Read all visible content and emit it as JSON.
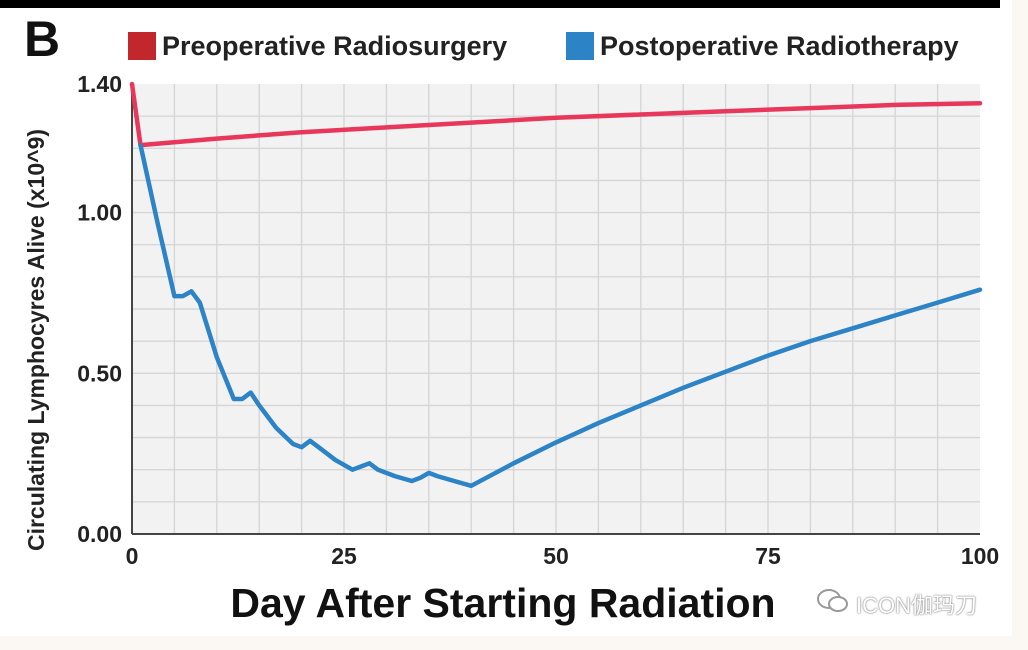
{
  "panel_label": "B",
  "watermark": {
    "text": "ICON伽玛刀",
    "icon": "wechat-icon"
  },
  "colors": {
    "preoperative": "#e8375a",
    "postoperative": "#2c83c6",
    "legend_pre_swatch": "#c1272d",
    "legend_post_swatch": "#2c83c6"
  },
  "chart_data": {
    "type": "line",
    "title": "",
    "xlabel": "Day After Starting Radiation",
    "ylabel": "Circulating Lymphocyres Alive (x10^9)",
    "xlim": [
      0,
      100
    ],
    "ylim": [
      0,
      1.4
    ],
    "xticks": [
      0,
      25,
      50,
      75,
      100
    ],
    "xtick_labels": [
      "0",
      "25",
      "50",
      "75",
      "100"
    ],
    "yticks": [
      0,
      0.5,
      1.0,
      1.4
    ],
    "ytick_labels": [
      "0.00",
      "0.50",
      "1.00",
      "1.40"
    ],
    "grid": true,
    "legend_position": "top",
    "series": [
      {
        "name": "Preoperative Radiosurgery",
        "x": [
          0,
          1,
          10,
          20,
          30,
          40,
          50,
          60,
          70,
          80,
          90,
          100
        ],
        "y": [
          1.4,
          1.21,
          1.23,
          1.25,
          1.265,
          1.28,
          1.295,
          1.305,
          1.315,
          1.325,
          1.335,
          1.34
        ]
      },
      {
        "name": "Postoperative Radiotherapy",
        "x": [
          1,
          3,
          5,
          6,
          7,
          8,
          10,
          12,
          13,
          14,
          15,
          17,
          19,
          20,
          21,
          22,
          24,
          26,
          27,
          28,
          29,
          31,
          33,
          34,
          35,
          36,
          38,
          40,
          45,
          50,
          55,
          60,
          65,
          70,
          75,
          80,
          85,
          90,
          95,
          100
        ],
        "y": [
          1.21,
          0.97,
          0.74,
          0.74,
          0.755,
          0.72,
          0.55,
          0.42,
          0.42,
          0.44,
          0.4,
          0.33,
          0.28,
          0.27,
          0.29,
          0.27,
          0.23,
          0.2,
          0.21,
          0.22,
          0.2,
          0.18,
          0.165,
          0.175,
          0.19,
          0.18,
          0.165,
          0.15,
          0.22,
          0.285,
          0.345,
          0.4,
          0.455,
          0.505,
          0.555,
          0.6,
          0.64,
          0.68,
          0.72,
          0.76
        ]
      }
    ]
  }
}
